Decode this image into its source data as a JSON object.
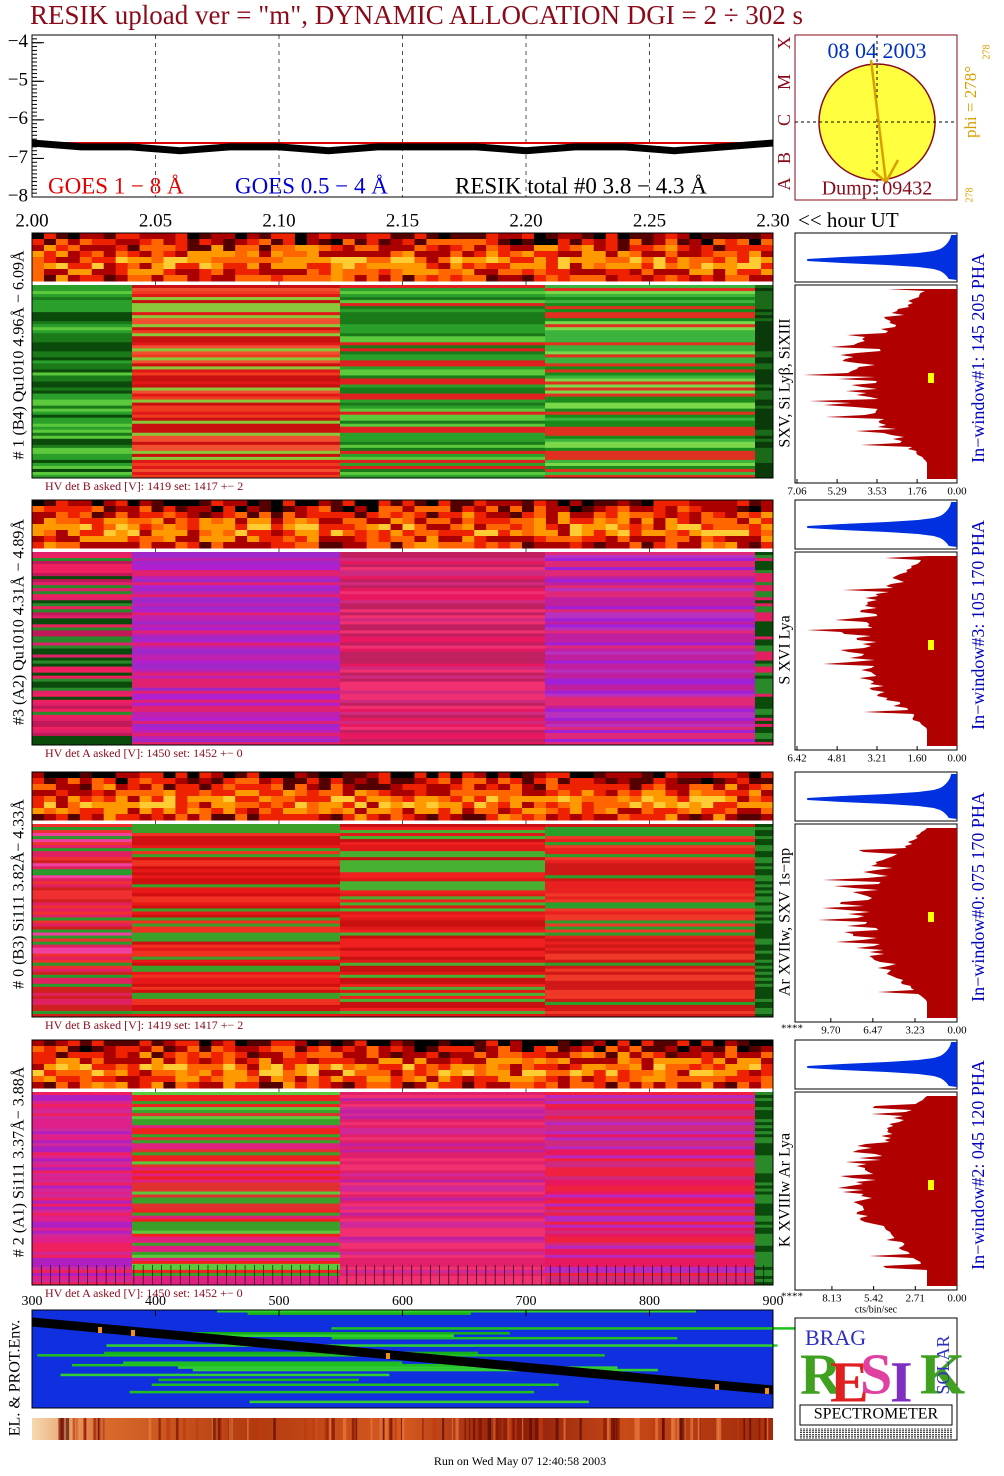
{
  "chart_data": [
    {
      "type": "line",
      "title": "RESIK upload ver = \"m\", DYNAMIC ALLOCATION  DGI =   2 ÷ 302 s",
      "x_label": "<< hour UT",
      "x": [
        2.0,
        2.02,
        2.04,
        2.06,
        2.08,
        2.1,
        2.12,
        2.14,
        2.16,
        2.18,
        2.2,
        2.22,
        2.24,
        2.26,
        2.28,
        2.3
      ],
      "series": [
        {
          "name": "GOES 1 − 8 Å",
          "color": "#e00000",
          "values": [
            -6.6,
            -6.6,
            -6.6,
            -6.6,
            -6.6,
            -6.6,
            -6.6,
            -6.6,
            -6.6,
            -6.6,
            -6.6,
            -6.6,
            -6.6,
            -6.6,
            -6.6,
            -6.6
          ]
        },
        {
          "name": "GOES 0.5 − 4 Å",
          "color": "#0000d0",
          "values": [
            null,
            null,
            null,
            null,
            null,
            null,
            null,
            null,
            null,
            null,
            null,
            null,
            null,
            null,
            null,
            null
          ]
        },
        {
          "name": "RESIK total #0  3.8 − 4.3 Å",
          "color": "#000000",
          "values": [
            -6.6,
            -6.7,
            -6.7,
            -6.8,
            -6.7,
            -6.7,
            -6.8,
            -6.7,
            -6.7,
            -6.7,
            -6.8,
            -6.7,
            -6.7,
            -6.8,
            -6.7,
            -6.6
          ]
        }
      ],
      "xlim": [
        2.0,
        2.3
      ],
      "xticks": [
        {
          "value": 2.0,
          "label": "2.00"
        },
        2.05,
        {
          "value": 2.1,
          "label": "2.10"
        },
        2.15,
        {
          "value": 2.2,
          "label": "2.20"
        },
        2.25,
        {
          "value": 2.3,
          "label": "2.30"
        }
      ],
      "ylim": [
        -8.0,
        -3.8
      ],
      "yticks": [
        {
          "value": -4,
          "label": "−4"
        },
        {
          "value": -5,
          "label": "−5"
        },
        {
          "value": -6,
          "label": "−6"
        },
        {
          "value": -7,
          "label": "−7"
        },
        {
          "value": -8,
          "label": "−8"
        }
      ],
      "grid": true
    },
    {
      "type": "spectrogram",
      "ylabel": "# 1 (B4) Qu1010 4.96Å − 6.09Å",
      "line_label": "SXV, Si Lyβ, SiXIII",
      "hv_label": "HV det B asked [V]:  1419 set:  1417 +−   2",
      "pha_label": "In−window#1:  145 205 PHA",
      "hist_xlim": [
        7.06,
        0
      ],
      "hist_xticks": [
        7.06,
        5.29,
        3.53,
        1.76,
        {
          "value": 0,
          "label": "0.00"
        }
      ]
    },
    {
      "type": "spectrogram",
      "ylabel": "#3 (A2) Qu1010  4.31Å − 4.89Å",
      "line_label": "S XVI Lya",
      "hv_label": "HV det A asked [V]:  1450 set:  1452 +−   0",
      "pha_label": "In−window#3:  105 170 PHA",
      "hist_xlim": [
        6.42,
        0
      ],
      "hist_xticks": [
        6.42,
        4.81,
        3.21,
        {
          "value": 1.6,
          "label": "1.60"
        },
        {
          "value": 0,
          "label": "0.00"
        }
      ]
    },
    {
      "type": "spectrogram",
      "ylabel": "# 0 (B3) Si111  3.82Å− 4.33Å",
      "line_label": "Ar XVIIw,  SXV 1s−np",
      "hv_label": "HV det B asked [V]:  1419 set:  1417 +−   2",
      "pha_label": "In−window#0:  075 170 PHA",
      "overflow_label": "****",
      "hist_xlim": [
        12.3,
        0
      ],
      "hist_xticks": [
        {
          "value": 9.7,
          "label": "9.70"
        },
        6.47,
        3.23,
        {
          "value": 0,
          "label": "0.00"
        }
      ]
    },
    {
      "type": "spectrogram",
      "ylabel": "# 2 (A1) Si111  3.37Å− 3.88Å",
      "line_label": "K XVIIIw  Ar Lya",
      "hv_label": "HV det A asked [V]:  1450 set:  1452 +−   0",
      "pha_label": "In−window#2:  045 120 PHA",
      "overflow_label": "****",
      "hist_xlabel": "cts/bin/sec",
      "hist_xlim": [
        10.4,
        0
      ],
      "hist_xticks": [
        8.13,
        5.42,
        2.71,
        {
          "value": 0,
          "label": "0.00"
        }
      ]
    },
    {
      "type": "env",
      "ylabel": "EL. & PROT.Env.",
      "xlim": [
        300,
        900
      ],
      "xticks": [
        300,
        400,
        500,
        600,
        700,
        800,
        900
      ]
    }
  ],
  "sun_panel": {
    "date": "08 04 2003",
    "dump": "Dump: 09432",
    "phi": "phi = 278°",
    "phi_top": "278",
    "phi_bottom": "278",
    "goes_classes": [
      "X",
      "M",
      "C",
      "B",
      "A"
    ]
  },
  "logo": {
    "letters": [
      "R",
      "E",
      "S",
      "I",
      "K"
    ],
    "top": "BRAG",
    "side": "SOLAR",
    "name": "SPECTROMETER"
  },
  "footer": "Run on Wed May 07 12:40:58 2003"
}
